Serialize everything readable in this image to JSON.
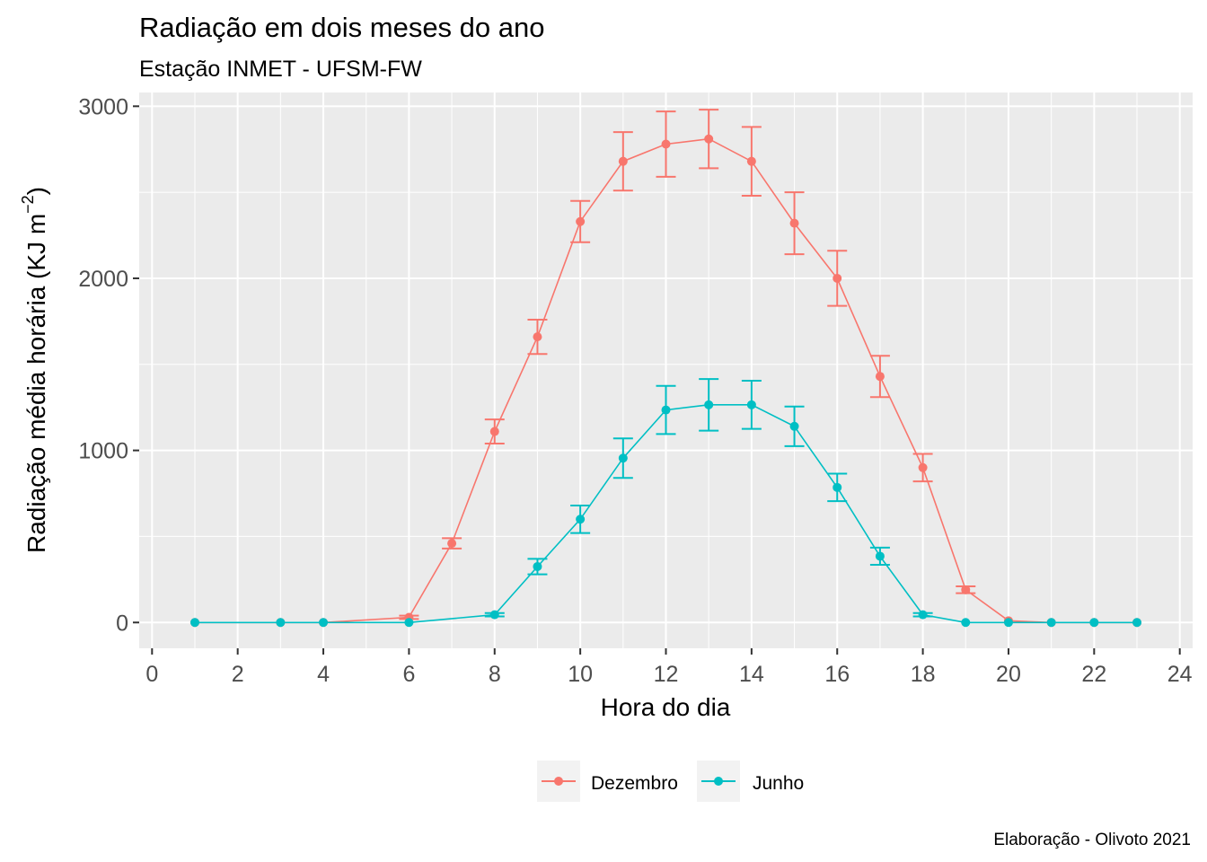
{
  "chart_data": {
    "type": "line",
    "title": "Radiação em dois meses do ano",
    "subtitle": "Estação INMET - UFSM-FW",
    "xlabel": "Hora do dia",
    "ylabel": "Radiação média horária (KJ m",
    "ylabel_sup": "−2",
    "ylabel_close": ")",
    "caption": "Elaboração - Olivoto 2021",
    "xlim": [
      -0.3,
      24.3
    ],
    "ylim": [
      -150,
      3080
    ],
    "x_ticks": [
      "0",
      "2",
      "4",
      "6",
      "8",
      "10",
      "12",
      "14",
      "16",
      "18",
      "20",
      "22",
      "24"
    ],
    "y_ticks": [
      "0",
      "1000",
      "2000",
      "3000"
    ],
    "grid": true,
    "legend_position": "bottom",
    "series": [
      {
        "name": "Dezembro",
        "color": "#F8766D",
        "x": [
          1,
          3,
          4,
          6,
          7,
          8,
          9,
          10,
          11,
          12,
          13,
          14,
          15,
          16,
          17,
          18,
          19,
          20,
          21,
          22,
          23
        ],
        "y": [
          0,
          0,
          0,
          30,
          460,
          1110,
          1660,
          2330,
          2680,
          2780,
          2810,
          2680,
          2320,
          2000,
          1430,
          900,
          190,
          10,
          0,
          0,
          0
        ],
        "err": [
          0,
          0,
          0,
          10,
          30,
          70,
          100,
          120,
          170,
          190,
          170,
          200,
          180,
          160,
          120,
          80,
          20,
          0,
          0,
          0,
          0
        ]
      },
      {
        "name": "Junho",
        "color": "#00BFC4",
        "x": [
          1,
          3,
          4,
          6,
          8,
          9,
          10,
          11,
          12,
          13,
          14,
          15,
          16,
          17,
          18,
          19,
          20,
          21,
          22,
          23
        ],
        "y": [
          0,
          0,
          0,
          0,
          45,
          325,
          600,
          955,
          1235,
          1265,
          1265,
          1140,
          785,
          385,
          45,
          0,
          0,
          0,
          0,
          0
        ],
        "err": [
          0,
          0,
          0,
          0,
          10,
          45,
          80,
          115,
          140,
          150,
          140,
          115,
          80,
          50,
          10,
          0,
          0,
          0,
          0,
          0
        ]
      }
    ]
  }
}
